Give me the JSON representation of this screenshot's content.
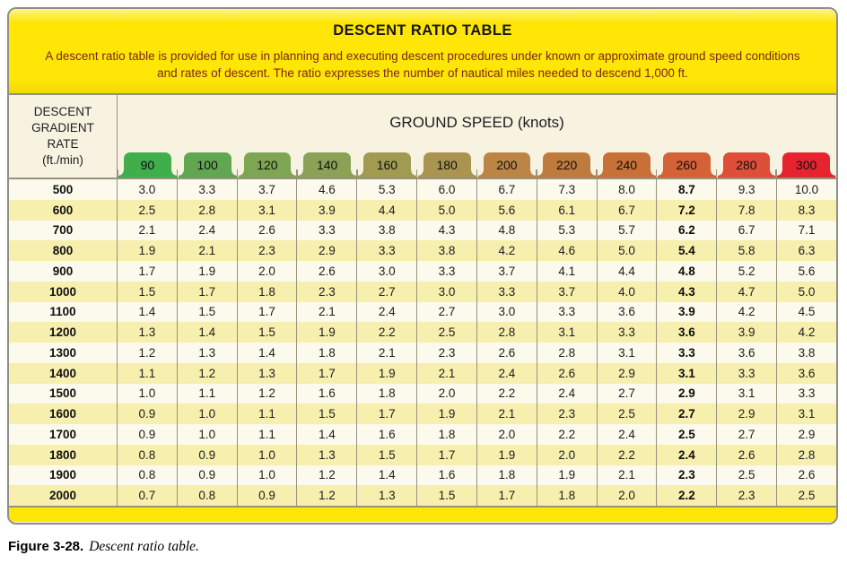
{
  "banner": {
    "title": "DESCENT RATIO TABLE",
    "description": "A descent ratio table is provided for use in planning and executing descent procedures under known or approximate ground speed conditions and rates of descent. The ratio expresses the number of nautical miles needed to descend 1,000 ft."
  },
  "table": {
    "row_header_lines": [
      "DESCENT",
      "GRADIENT",
      "RATE",
      "(ft./min)"
    ]
  },
  "chart_data": {
    "type": "table",
    "title": "DESCENT RATIO TABLE",
    "col_header": "GROUND SPEED (knots)",
    "row_header": "DESCENT GRADIENT RATE (ft./min)",
    "bold_column": "260",
    "columns": [
      {
        "label": "90",
        "color": "#3fae4b"
      },
      {
        "label": "100",
        "color": "#61a751"
      },
      {
        "label": "120",
        "color": "#7ea652"
      },
      {
        "label": "140",
        "color": "#8aa156"
      },
      {
        "label": "160",
        "color": "#a19b52"
      },
      {
        "label": "180",
        "color": "#aa9550"
      },
      {
        "label": "200",
        "color": "#bc8545"
      },
      {
        "label": "220",
        "color": "#bf7b3e"
      },
      {
        "label": "240",
        "color": "#c97038"
      },
      {
        "label": "260",
        "color": "#d56136"
      },
      {
        "label": "280",
        "color": "#de4e39"
      },
      {
        "label": "300",
        "color": "#e52430"
      }
    ],
    "rows": [
      {
        "rate": "500",
        "values": [
          "3.0",
          "3.3",
          "3.7",
          "4.6",
          "5.3",
          "6.0",
          "6.7",
          "7.3",
          "8.0",
          "8.7",
          "9.3",
          "10.0"
        ]
      },
      {
        "rate": "600",
        "values": [
          "2.5",
          "2.8",
          "3.1",
          "3.9",
          "4.4",
          "5.0",
          "5.6",
          "6.1",
          "6.7",
          "7.2",
          "7.8",
          "8.3"
        ]
      },
      {
        "rate": "700",
        "values": [
          "2.1",
          "2.4",
          "2.6",
          "3.3",
          "3.8",
          "4.3",
          "4.8",
          "5.3",
          "5.7",
          "6.2",
          "6.7",
          "7.1"
        ]
      },
      {
        "rate": "800",
        "values": [
          "1.9",
          "2.1",
          "2.3",
          "2.9",
          "3.3",
          "3.8",
          "4.2",
          "4.6",
          "5.0",
          "5.4",
          "5.8",
          "6.3"
        ]
      },
      {
        "rate": "900",
        "values": [
          "1.7",
          "1.9",
          "2.0",
          "2.6",
          "3.0",
          "3.3",
          "3.7",
          "4.1",
          "4.4",
          "4.8",
          "5.2",
          "5.6"
        ]
      },
      {
        "rate": "1000",
        "values": [
          "1.5",
          "1.7",
          "1.8",
          "2.3",
          "2.7",
          "3.0",
          "3.3",
          "3.7",
          "4.0",
          "4.3",
          "4.7",
          "5.0"
        ]
      },
      {
        "rate": "1100",
        "values": [
          "1.4",
          "1.5",
          "1.7",
          "2.1",
          "2.4",
          "2.7",
          "3.0",
          "3.3",
          "3.6",
          "3.9",
          "4.2",
          "4.5"
        ]
      },
      {
        "rate": "1200",
        "values": [
          "1.3",
          "1.4",
          "1.5",
          "1.9",
          "2.2",
          "2.5",
          "2.8",
          "3.1",
          "3.3",
          "3.6",
          "3.9",
          "4.2"
        ]
      },
      {
        "rate": "1300",
        "values": [
          "1.2",
          "1.3",
          "1.4",
          "1.8",
          "2.1",
          "2.3",
          "2.6",
          "2.8",
          "3.1",
          "3.3",
          "3.6",
          "3.8"
        ]
      },
      {
        "rate": "1400",
        "values": [
          "1.1",
          "1.2",
          "1.3",
          "1.7",
          "1.9",
          "2.1",
          "2.4",
          "2.6",
          "2.9",
          "3.1",
          "3.3",
          "3.6"
        ]
      },
      {
        "rate": "1500",
        "values": [
          "1.0",
          "1.1",
          "1.2",
          "1.6",
          "1.8",
          "2.0",
          "2.2",
          "2.4",
          "2.7",
          "2.9",
          "3.1",
          "3.3"
        ]
      },
      {
        "rate": "1600",
        "values": [
          "0.9",
          "1.0",
          "1.1",
          "1.5",
          "1.7",
          "1.9",
          "2.1",
          "2.3",
          "2.5",
          "2.7",
          "2.9",
          "3.1"
        ]
      },
      {
        "rate": "1700",
        "values": [
          "0.9",
          "1.0",
          "1.1",
          "1.4",
          "1.6",
          "1.8",
          "2.0",
          "2.2",
          "2.4",
          "2.5",
          "2.7",
          "2.9"
        ]
      },
      {
        "rate": "1800",
        "values": [
          "0.8",
          "0.9",
          "1.0",
          "1.3",
          "1.5",
          "1.7",
          "1.9",
          "2.0",
          "2.2",
          "2.4",
          "2.6",
          "2.8"
        ]
      },
      {
        "rate": "1900",
        "values": [
          "0.8",
          "0.9",
          "1.0",
          "1.2",
          "1.4",
          "1.6",
          "1.8",
          "1.9",
          "2.1",
          "2.3",
          "2.5",
          "2.6"
        ]
      },
      {
        "rate": "2000",
        "values": [
          "0.7",
          "0.8",
          "0.9",
          "1.2",
          "1.3",
          "1.5",
          "1.7",
          "1.8",
          "2.0",
          "2.2",
          "2.3",
          "2.5"
        ]
      }
    ]
  },
  "caption": {
    "label": "Figure 3-28.",
    "text": "Descent ratio table."
  },
  "colors": {
    "banner_yellow": "#ffe606",
    "description_text": "#7c241b",
    "background_cream": "#f8f3e1",
    "row_stripe_yellow": "#f6efad",
    "row_stripe_cream": "#fcf9ed",
    "grid_line": "#97927f",
    "outer_border": "#8f8f86"
  }
}
